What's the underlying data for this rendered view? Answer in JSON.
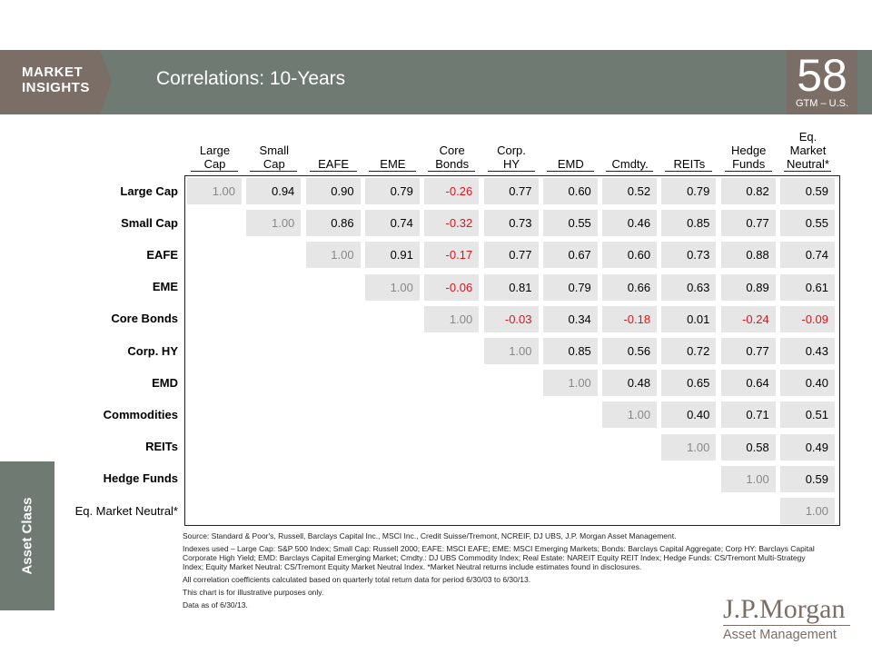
{
  "header": {
    "brand_tab": "MARKET\nINSIGHTS",
    "title": "Correlations: 10-Years",
    "page_number": "58",
    "page_sub": "GTM – U.S."
  },
  "side_tab": {
    "label": "Asset Class"
  },
  "columns": [
    "Large\nCap",
    "Small\nCap",
    "EAFE",
    "EME",
    "Core\nBonds",
    "Corp.\nHY",
    "EMD",
    "Cmdty.",
    "REITs",
    "Hedge\nFunds",
    "Eq.\nMarket\nNeutral*"
  ],
  "rows": [
    {
      "label": "Large Cap",
      "values": [
        "1.00",
        "0.94",
        "0.90",
        "0.79",
        "-0.26",
        "0.77",
        "0.60",
        "0.52",
        "0.79",
        "0.82",
        "0.59"
      ]
    },
    {
      "label": "Small Cap",
      "values": [
        "1.00",
        "0.86",
        "0.74",
        "-0.32",
        "0.73",
        "0.55",
        "0.46",
        "0.85",
        "0.77",
        "0.55"
      ]
    },
    {
      "label": "EAFE",
      "values": [
        "1.00",
        "0.91",
        "-0.17",
        "0.77",
        "0.67",
        "0.60",
        "0.73",
        "0.88",
        "0.74"
      ]
    },
    {
      "label": "EME",
      "values": [
        "1.00",
        "-0.06",
        "0.81",
        "0.79",
        "0.66",
        "0.63",
        "0.89",
        "0.61"
      ]
    },
    {
      "label": "Core Bonds",
      "values": [
        "1.00",
        "-0.03",
        "0.34",
        "-0.18",
        "0.01",
        "-0.24",
        "-0.09"
      ]
    },
    {
      "label": "Corp. HY",
      "values": [
        "1.00",
        "0.85",
        "0.56",
        "0.72",
        "0.77",
        "0.43"
      ]
    },
    {
      "label": "EMD",
      "values": [
        "1.00",
        "0.48",
        "0.65",
        "0.64",
        "0.40"
      ]
    },
    {
      "label": "Commodities",
      "values": [
        "1.00",
        "0.40",
        "0.71",
        "0.51"
      ]
    },
    {
      "label": "REITs",
      "values": [
        "1.00",
        "0.58",
        "0.49"
      ]
    },
    {
      "label": "Hedge Funds",
      "values": [
        "1.00",
        "0.59"
      ]
    },
    {
      "label": "Eq. Market Neutral*",
      "values": [
        "1.00"
      ]
    }
  ],
  "notes": [
    "Source: Standard & Poor's, Russell, Barclays Capital Inc., MSCI Inc., Credit Suisse/Tremont, NCREIF, DJ UBS, J.P. Morgan Asset Management.",
    "Indexes used – Large Cap: S&P 500 Index; Small Cap: Russell 2000; EAFE: MSCI EAFE; EME: MSCI Emerging Markets; Bonds: Barclays Capital Aggregate; Corp HY: Barclays Capital Corporate High Yield; EMD: Barclays Capital Emerging Market; Cmdty.: DJ UBS Commodity Index; Real Estate: NAREIT Equity REIT Index; Hedge Funds: CS/Tremont Multi-Strategy Index; Equity Market Neutral: CS/Tremont Equity Market Neutral Index. *Market Neutral returns include estimates found in disclosures.",
    "All correlation coefficients calculated based on quarterly total return data for period 6/30/03 to 6/30/13.",
    "This chart is for illustrative purposes only.",
    "Data as of 6/30/13."
  ],
  "logo": {
    "main": "J.P.Morgan",
    "sub": "Asset Management"
  },
  "colors": {
    "header": "#6f7a72",
    "brand": "#7b6e66",
    "cell": "#e6e6e6",
    "negative": "#e0151b",
    "diagonal": "#888888"
  }
}
